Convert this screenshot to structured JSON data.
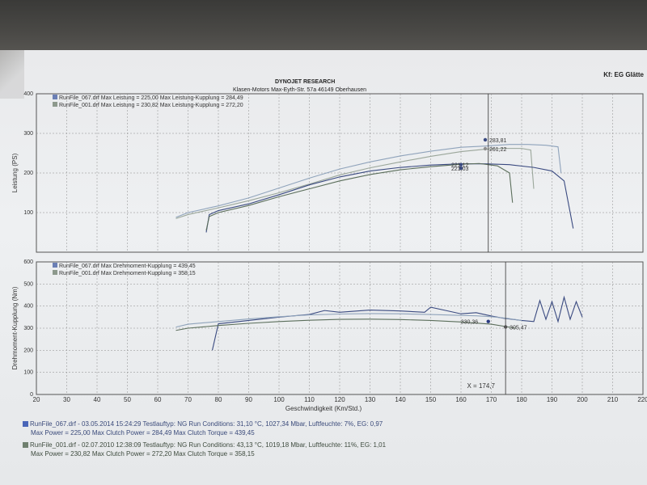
{
  "header": {
    "company": "DYNOJET RESEARCH",
    "address": "Klasen-Motors   Max-Eyth-Str. 57a   46149 Oberhausen",
    "corner_text": "Kf: EG  Glätte"
  },
  "chart_data": [
    {
      "type": "line",
      "ylabel": "Leistung (PS)",
      "yticks": [
        "400",
        "300",
        "200",
        "100"
      ],
      "ylim": [
        0,
        400
      ],
      "xlim": [
        20,
        220
      ],
      "legend": [
        "RunFile_067.drf Max Leistung = 225,00    Max Leistung-Kupplung = 284,49",
        "RunFile_001.drf Max Leistung = 230,82    Max Leistung-Kupplung = 272,20"
      ],
      "series": [
        {
          "color": "#8fa3bb",
          "x": [
            66,
            70,
            80,
            90,
            100,
            110,
            120,
            130,
            140,
            150,
            160,
            168,
            176,
            182,
            188,
            192,
            193
          ],
          "y": [
            88,
            100,
            117,
            137,
            162,
            187,
            210,
            228,
            243,
            255,
            265,
            268,
            272,
            272,
            270,
            266,
            200
          ]
        },
        {
          "color": "#9aa69a",
          "x": [
            66,
            70,
            80,
            90,
            100,
            110,
            120,
            130,
            140,
            150,
            160,
            168,
            174,
            180,
            183,
            184
          ],
          "y": [
            85,
            95,
            112,
            130,
            150,
            172,
            195,
            213,
            228,
            242,
            254,
            260,
            262,
            262,
            258,
            160
          ]
        },
        {
          "color": "#3a4a80",
          "x": [
            76,
            77,
            80,
            90,
            100,
            110,
            120,
            130,
            140,
            150,
            160,
            168,
            176,
            184,
            190,
            194,
            196,
            197
          ],
          "y": [
            50,
            95,
            105,
            122,
            145,
            170,
            190,
            205,
            214,
            220,
            223,
            223,
            221,
            214,
            205,
            180,
            100,
            60
          ]
        },
        {
          "color": "#5b6e5b",
          "x": [
            76,
            77,
            80,
            90,
            100,
            110,
            120,
            130,
            140,
            150,
            160,
            166,
            172,
            176,
            177
          ],
          "y": [
            55,
            90,
            100,
            118,
            140,
            160,
            180,
            196,
            208,
            216,
            222,
            224,
            218,
            200,
            125
          ]
        }
      ],
      "annotations": [
        "283,81",
        "261,22",
        "221,12",
        "221,03"
      ]
    },
    {
      "type": "line",
      "ylabel": "Drehmoment-Kupplung (Nm)",
      "yticks": [
        "600",
        "500",
        "400",
        "300",
        "200",
        "100",
        "0"
      ],
      "ylim": [
        0,
        600
      ],
      "xlim": [
        20,
        220
      ],
      "xlabel": "Geschwindigkeit (Km/Std.)",
      "xticks": [
        "20",
        "30",
        "40",
        "50",
        "60",
        "70",
        "80",
        "90",
        "100",
        "110",
        "120",
        "130",
        "140",
        "150",
        "160",
        "170",
        "180",
        "190",
        "200",
        "210",
        "220"
      ],
      "legend": [
        "RunFile_067.drf Max Drehmoment-Kupplung = 439,45",
        "RunFile_001.drf Max Drehmoment-Kupplung = 358,15"
      ],
      "series": [
        {
          "color": "#3a4a80",
          "x": [
            78,
            80,
            90,
            100,
            110,
            115,
            120,
            130,
            140,
            148,
            150,
            155,
            160,
            165,
            170,
            174,
            180,
            184,
            186,
            188,
            190,
            192,
            194,
            196,
            198,
            200
          ],
          "y": [
            200,
            320,
            335,
            350,
            362,
            380,
            372,
            382,
            378,
            372,
            395,
            380,
            365,
            370,
            355,
            345,
            335,
            330,
            425,
            340,
            420,
            330,
            440,
            340,
            420,
            350
          ]
        },
        {
          "color": "#8fa3bb",
          "x": [
            66,
            70,
            80,
            90,
            100,
            110,
            120,
            130,
            140,
            150,
            160,
            165,
            170,
            175,
            180
          ],
          "y": [
            305,
            318,
            330,
            342,
            352,
            360,
            364,
            366,
            365,
            362,
            358,
            356,
            352,
            345,
            335
          ]
        },
        {
          "color": "#5b6e5b",
          "x": [
            66,
            70,
            80,
            90,
            100,
            110,
            120,
            130,
            140,
            150,
            160,
            170,
            178
          ],
          "y": [
            290,
            300,
            312,
            322,
            330,
            336,
            340,
            341,
            339,
            335,
            328,
            318,
            300
          ]
        }
      ],
      "annotations": [
        "330,36",
        "305,47"
      ],
      "cursor_label": "X = 174,7"
    }
  ],
  "footer": {
    "run1": "RunFile_067.drf - 03.05.2014 15:24:29   Testlauftyp: NG   Run Conditions: 31,10 °C, 1027,34 Mbar,  Luftfeuchte: 7%,  EG: 0,97",
    "run1_b": "Max Power = 225,00   Max Clutch Power = 284,49   Max Clutch Torque = 439,45",
    "run2": "RunFile_001.drf - 02.07.2010 12:38:09   Testlauftyp: NG   Run Conditions: 43,13 °C, 1019,18 Mbar,  Luftfeuchte: 11%,  EG: 1,01",
    "run2_b": "Max Power = 230,82   Max Clutch Power = 272,20   Max Clutch Torque = 358,15",
    "colors": {
      "run1": "#4a66b8",
      "run2": "#6f806f"
    }
  }
}
